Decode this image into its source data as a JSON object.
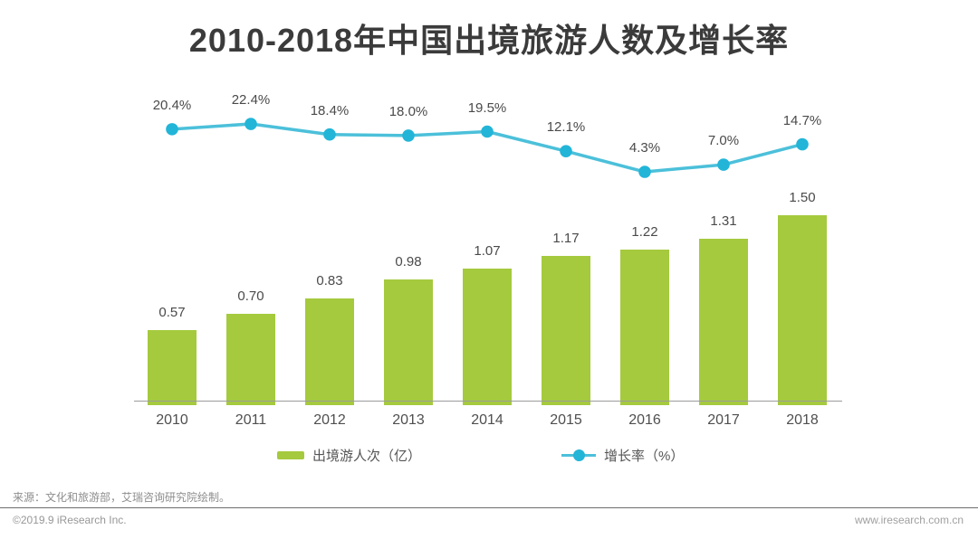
{
  "title": "2010-2018年中国出境旅游人数及增长率",
  "chart_data": {
    "type": "bar+line",
    "title": "2010-2018年中国出境旅游人数及增长率",
    "categories": [
      "2010",
      "2011",
      "2012",
      "2013",
      "2014",
      "2015",
      "2016",
      "2017",
      "2018"
    ],
    "series": [
      {
        "name": "出境游人次（亿）",
        "type": "bar",
        "color": "#a5ca3e",
        "values": [
          0.57,
          0.7,
          0.83,
          0.98,
          1.07,
          1.17,
          1.22,
          1.31,
          1.5
        ],
        "labels": [
          "0.57",
          "0.70",
          "0.83",
          "0.98",
          "1.07",
          "1.17",
          "1.22",
          "1.31",
          "1.50"
        ]
      },
      {
        "name": "增长率（%）",
        "type": "line",
        "color": "#4cc0da",
        "point_color": "#22b5d8",
        "values": [
          20.4,
          22.4,
          18.4,
          18.0,
          19.5,
          12.1,
          4.3,
          7.0,
          14.7
        ],
        "labels": [
          "20.4%",
          "22.4%",
          "18.4%",
          "18.0%",
          "19.5%",
          "12.1%",
          "4.3%",
          "7.0%",
          "14.7%"
        ]
      }
    ],
    "legend": {
      "position": "bottom",
      "items": [
        {
          "label": "出境游人次（亿）",
          "swatch": "bar",
          "color": "#a5ca3e"
        },
        {
          "label": "增长率（%）",
          "swatch": "line-dot",
          "color": "#4cc0da"
        }
      ]
    },
    "axes": {
      "x_labels_visible": true,
      "y_axis_visible": false,
      "grid": false,
      "value_labels_visible": true
    }
  },
  "footer": {
    "source": "来源：文化和旅游部，艾瑞咨询研究院绘制。",
    "copyright": "©2019.9 iResearch Inc.",
    "website": "www.iresearch.com.cn"
  }
}
